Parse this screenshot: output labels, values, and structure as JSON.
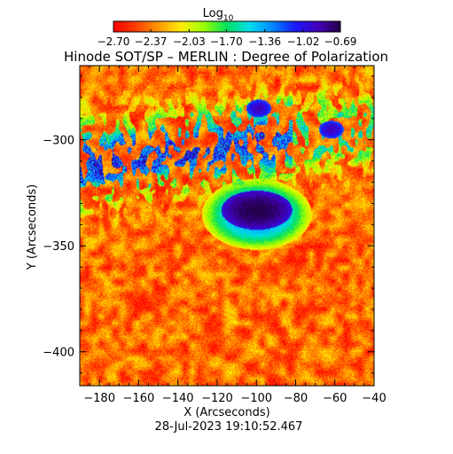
{
  "chart_data": {
    "type": "heatmap",
    "title": "Hinode SOT/SP – MERLIN : Degree of Polarization",
    "xlabel": "X (Arcseconds)",
    "ylabel": "Y (Arcseconds)",
    "timestamp": "28-Jul-2023 19:10:52.467",
    "xlim": [
      -190,
      -40
    ],
    "ylim": [
      -416,
      -265
    ],
    "x_ticks": [
      -180,
      -160,
      -140,
      -120,
      -100,
      -80,
      -60,
      -40
    ],
    "x_tick_labels": [
      "−180",
      "−160",
      "−140",
      "−120",
      "−100",
      "−80",
      "−60",
      "−40"
    ],
    "y_ticks": [
      -300,
      -350,
      -400
    ],
    "y_tick_labels": [
      "−300",
      "−350",
      "−400"
    ],
    "colorbar": {
      "title": "Log",
      "title_subscript": "10",
      "range": [
        -2.7,
        -0.69
      ],
      "tick_values": [
        -2.7,
        -2.37,
        -2.03,
        -1.7,
        -1.36,
        -1.02,
        -0.69
      ],
      "tick_labels": [
        "−2.70",
        "−2.37",
        "−2.03",
        "−1.70",
        "−1.36",
        "−1.02",
        "−0.69"
      ]
    },
    "colormap_stops": [
      "#ff0000",
      "#ff4000",
      "#ff9900",
      "#ffee00",
      "#99ff00",
      "#00e060",
      "#00ddee",
      "#0088ff",
      "#1a1aff",
      "#4400bb",
      "#220044"
    ],
    "features": [
      {
        "name": "sunspot umbra",
        "x": -100,
        "y": -333,
        "value": -0.69
      },
      {
        "name": "penumbra",
        "x": -100,
        "y": -335,
        "value": -1.2
      },
      {
        "name": "plage network",
        "x": -150,
        "y": -305,
        "value": -1.3
      },
      {
        "name": "pore",
        "x": -99,
        "y": -285,
        "value": -0.9
      },
      {
        "name": "pore",
        "x": -62,
        "y": -295,
        "value": -0.9
      },
      {
        "name": "quiet sun",
        "x": -170,
        "y": -380,
        "value": -2.6
      }
    ]
  }
}
